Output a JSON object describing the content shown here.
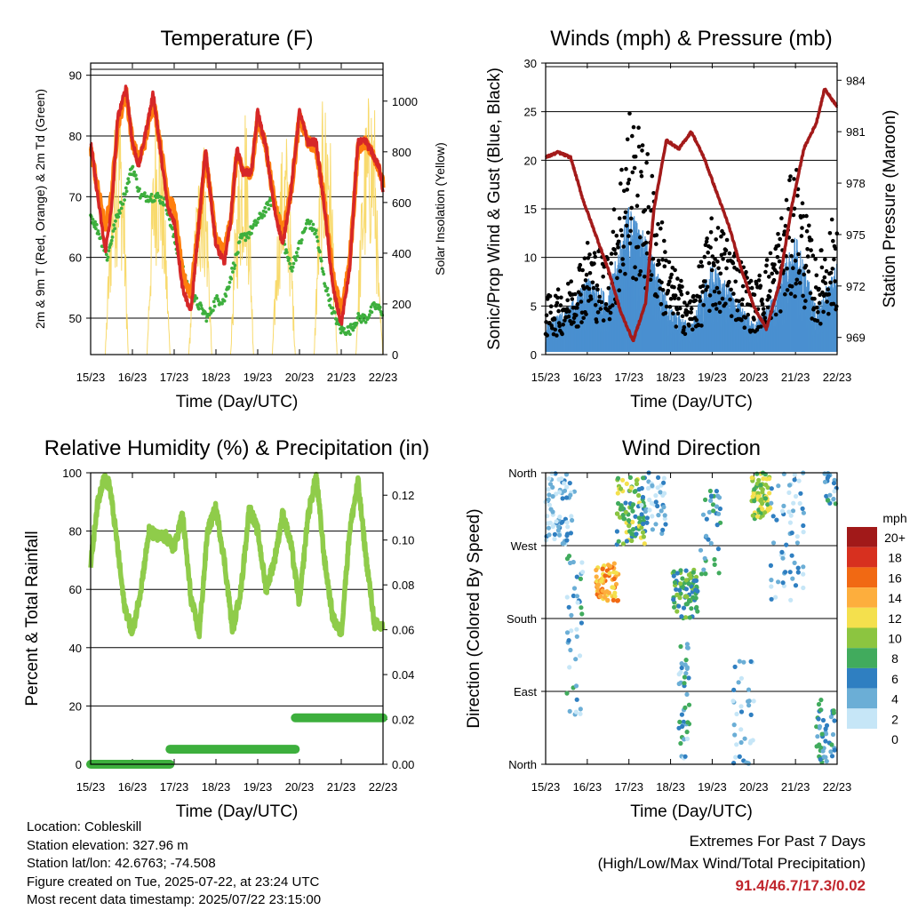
{
  "footer": {
    "location": "Location: Cobleskill",
    "elevation": "Station elevation: 327.96 m",
    "latlon": "Station lat/lon: 42.6763; -74.508",
    "created": "Figure created on Tue, 2025-07-22, at 23:24 UTC",
    "recent": "Most recent data timestamp: 2025/07/22 23:15:00",
    "extremes_title": "Extremes For Past 7 Days",
    "extremes_sub": "(High/Low/Max Wind/Total Precipitation)",
    "extremes_values": "91.4/46.7/17.3/0.02"
  },
  "chart_data": [
    {
      "type": "line",
      "title": "Temperature (F)",
      "xlabel": "Time (Day/UTC)",
      "ylabel": "2m & 9m T (Red, Orange) & 2m Td (Green)",
      "y2label": "Solar Insolation (Yellow)",
      "x_ticks": [
        "15/23",
        "16/23",
        "17/23",
        "18/23",
        "19/23",
        "20/23",
        "21/23",
        "22/23"
      ],
      "ylim": [
        44,
        92
      ],
      "y_ticks": [
        50,
        60,
        70,
        80,
        90
      ],
      "y2lim": [
        0,
        1150
      ],
      "y2_ticks": [
        0,
        200,
        400,
        600,
        800,
        1000
      ],
      "grid": true,
      "colors": {
        "t2m": "#d62728",
        "t9m": "#ff7f0e",
        "td": "#3daf3d",
        "solar": "#f7d354"
      },
      "series": [
        {
          "name": "2m T",
          "color": "#d62728",
          "x": [
            0,
            0.15,
            0.35,
            0.5,
            0.65,
            0.85,
            1.0,
            1.15,
            1.3,
            1.5,
            1.7,
            1.85,
            2.0,
            2.2,
            2.4,
            2.6,
            2.75,
            3.0,
            3.2,
            3.35,
            3.5,
            3.65,
            3.85,
            4.0,
            4.2,
            4.4,
            4.6,
            4.8,
            5.0,
            5.2,
            5.4,
            5.6,
            5.8,
            6.0,
            6.2,
            6.4,
            6.6,
            6.75,
            6.9,
            7.0
          ],
          "y": [
            79,
            71,
            61,
            68,
            83,
            88,
            79,
            75,
            80,
            87,
            76,
            68,
            66,
            55,
            51,
            66,
            78,
            62,
            59,
            66,
            78,
            74,
            74,
            84,
            78,
            68,
            62,
            71,
            84,
            79,
            79,
            68,
            55,
            49,
            58,
            79,
            79,
            77,
            75,
            71
          ]
        },
        {
          "name": "9m T",
          "color": "#ff7f0e",
          "x": [
            0,
            0.15,
            0.35,
            0.5,
            0.65,
            0.85,
            1.0,
            1.15,
            1.3,
            1.5,
            1.7,
            1.85,
            2.0,
            2.2,
            2.4,
            2.6,
            2.75,
            3.0,
            3.2,
            3.35,
            3.5,
            3.65,
            3.85,
            4.0,
            4.2,
            4.4,
            4.6,
            4.8,
            5.0,
            5.2,
            5.4,
            5.6,
            5.8,
            6.0,
            6.2,
            6.4,
            6.6,
            6.75,
            6.9,
            7.0
          ],
          "y": [
            78,
            72,
            65,
            70,
            82,
            87,
            79,
            76,
            79,
            86,
            77,
            70,
            68,
            57,
            54,
            66,
            77,
            63,
            61,
            66,
            77,
            74,
            74,
            83,
            78,
            69,
            64,
            71,
            83,
            79,
            78,
            69,
            57,
            51,
            59,
            78,
            79,
            77,
            75,
            72
          ]
        },
        {
          "name": "2m Td",
          "color": "#3daf3d",
          "x": [
            0,
            0.2,
            0.4,
            0.6,
            0.8,
            1.0,
            1.2,
            1.4,
            1.6,
            1.8,
            2.0,
            2.2,
            2.4,
            2.6,
            2.8,
            3.0,
            3.2,
            3.4,
            3.6,
            3.8,
            4.0,
            4.2,
            4.4,
            4.6,
            4.8,
            5.0,
            5.2,
            5.4,
            5.6,
            5.8,
            6.0,
            6.2,
            6.4,
            6.6,
            6.8,
            7.0
          ],
          "y": [
            67,
            64,
            60,
            66,
            70,
            75,
            70,
            70,
            70,
            69,
            63,
            58,
            54,
            52,
            50,
            53,
            53,
            58,
            63,
            64,
            66,
            68,
            70,
            63,
            58,
            62,
            66,
            64,
            56,
            51,
            48,
            48,
            50,
            50,
            52,
            51
          ]
        },
        {
          "name": "Solar Insolation",
          "color": "#f7d354",
          "axis": "y2",
          "x": [
            0,
            0.35,
            0.45,
            0.55,
            0.7,
            0.8,
            0.9,
            1.35,
            1.45,
            1.55,
            1.7,
            1.8,
            1.9,
            2.35,
            2.45,
            2.55,
            2.7,
            2.8,
            2.9,
            3.35,
            3.45,
            3.55,
            3.7,
            3.8,
            3.9,
            4.35,
            4.45,
            4.55,
            4.7,
            4.8,
            4.9,
            5.35,
            5.45,
            5.55,
            5.7,
            5.8,
            5.9,
            6.35,
            6.45,
            6.55,
            6.7,
            6.8,
            6.9,
            7.0
          ],
          "y": [
            0,
            0,
            500,
            900,
            1050,
            700,
            0,
            0,
            600,
            1000,
            900,
            500,
            0,
            0,
            400,
            700,
            900,
            600,
            0,
            0,
            500,
            800,
            1050,
            700,
            0,
            0,
            450,
            800,
            900,
            500,
            0,
            0,
            600,
            1000,
            1050,
            600,
            0,
            0,
            500,
            900,
            1100,
            1000,
            300,
            0
          ]
        }
      ]
    },
    {
      "type": "scatter",
      "title": "Winds (mph) & Pressure (mb)",
      "xlabel": "Time (Day/UTC)",
      "ylabel": "Sonic/Prop Wind & Gust (Blue, Black)",
      "y2label": "Station Pressure (Maroon)",
      "x_ticks": [
        "15/23",
        "16/23",
        "17/23",
        "18/23",
        "19/23",
        "20/23",
        "21/23",
        "22/23"
      ],
      "ylim": [
        0,
        30
      ],
      "y_ticks": [
        0,
        5,
        10,
        15,
        20,
        25,
        30
      ],
      "y2lim": [
        968,
        985
      ],
      "y2_ticks": [
        969,
        972,
        975,
        978,
        981,
        984
      ],
      "grid": true,
      "colors": {
        "wind": "#4a90d0",
        "gust": "#000000",
        "pressure": "#a31a1a"
      },
      "series": [
        {
          "name": "Wind",
          "color": "#4a90d0",
          "x": [
            0,
            0.5,
            1.0,
            1.5,
            2.0,
            2.5,
            3.0,
            3.5,
            4.0,
            4.5,
            5.0,
            5.5,
            6.0,
            6.5,
            7.0
          ],
          "y": [
            2,
            3,
            5,
            4,
            10,
            7,
            3,
            2,
            6,
            4,
            2,
            4,
            8,
            3,
            6
          ]
        },
        {
          "name": "Gust",
          "color": "#000000",
          "x": [
            0,
            0.5,
            1.0,
            1.5,
            2.0,
            2.5,
            3.0,
            3.5,
            4.0,
            4.5,
            5.0,
            5.5,
            6.0,
            6.5,
            7.0
          ],
          "y": [
            5,
            6,
            10,
            9,
            22,
            17,
            8,
            5,
            12,
            10,
            6,
            10,
            17,
            8,
            13
          ]
        },
        {
          "name": "Station Pressure",
          "color": "#a31a1a",
          "axis": "y2",
          "x": [
            0,
            0.3,
            0.6,
            0.9,
            1.2,
            1.5,
            1.8,
            2.1,
            2.4,
            2.6,
            2.9,
            3.2,
            3.5,
            3.8,
            4.1,
            4.4,
            4.7,
            5.0,
            5.3,
            5.6,
            5.9,
            6.2,
            6.5,
            6.7,
            6.9,
            7.0
          ],
          "y": [
            979.5,
            979.8,
            979.5,
            977.0,
            975.0,
            973.0,
            970.5,
            968.8,
            971.0,
            976.5,
            980.5,
            980.0,
            981.0,
            979.5,
            977.5,
            975.5,
            973.0,
            970.8,
            969.5,
            972.0,
            976.5,
            980.0,
            981.5,
            983.5,
            982.8,
            982.5
          ]
        }
      ]
    },
    {
      "type": "line",
      "title": "Relative Humidity (%) & Precipitation (in)",
      "xlabel": "Time (Day/UTC)",
      "ylabel": "Percent & Total Rainfall",
      "x_ticks": [
        "15/23",
        "16/23",
        "17/23",
        "18/23",
        "19/23",
        "20/23",
        "21/23",
        "22/23"
      ],
      "ylim": [
        0,
        100
      ],
      "y_ticks": [
        0,
        20,
        40,
        60,
        80,
        100
      ],
      "y2lim": [
        0,
        0.13
      ],
      "y2_ticks": [
        0.0,
        0.02,
        0.04,
        0.06,
        0.08,
        0.1,
        0.12
      ],
      "grid": true,
      "colors": {
        "rh": "#8fcc4a",
        "precip": "#3daf3d"
      },
      "series": [
        {
          "name": "RH",
          "color": "#8fcc4a",
          "x": [
            0,
            0.15,
            0.3,
            0.45,
            0.6,
            0.8,
            1.0,
            1.2,
            1.4,
            1.6,
            1.8,
            2.0,
            2.2,
            2.4,
            2.6,
            2.8,
            3.0,
            3.2,
            3.4,
            3.6,
            3.8,
            4.0,
            4.2,
            4.4,
            4.6,
            4.8,
            5.0,
            5.2,
            5.4,
            5.6,
            5.8,
            6.0,
            6.2,
            6.4,
            6.6,
            6.8,
            7.0
          ],
          "y": [
            68,
            88,
            98,
            96,
            80,
            55,
            45,
            60,
            80,
            78,
            78,
            74,
            86,
            57,
            45,
            80,
            88,
            70,
            46,
            60,
            88,
            80,
            60,
            70,
            86,
            75,
            55,
            85,
            99,
            70,
            50,
            45,
            80,
            97,
            70,
            48,
            47
          ]
        },
        {
          "name": "Precipitation",
          "color": "#3daf3d",
          "axis": "y2",
          "x": [
            0,
            1.9,
            1.9,
            4.9,
            4.9,
            7.0
          ],
          "y": [
            0.0,
            0.0,
            0.0067,
            0.0067,
            0.0207,
            0.0207
          ]
        }
      ]
    },
    {
      "type": "scatter",
      "title": "Wind Direction",
      "xlabel": "Time (Day/UTC)",
      "ylabel": "Direction (Colored By Speed)",
      "x_ticks": [
        "15/23",
        "16/23",
        "17/23",
        "18/23",
        "19/23",
        "20/23",
        "21/23",
        "22/23"
      ],
      "y_ticks": [
        "North",
        "East",
        "South",
        "West",
        "North"
      ],
      "ylim": [
        0,
        360
      ],
      "grid": true,
      "colorbar": {
        "unit": "mph",
        "labels": [
          "20+",
          "18",
          "16",
          "14",
          "12",
          "10",
          "8",
          "6",
          "4",
          "2",
          "0"
        ],
        "colors": [
          "#a11919",
          "#d7301f",
          "#f16913",
          "#fdae3d",
          "#f4e04d",
          "#8cc540",
          "#41ab5d",
          "#2f7fc1",
          "#6baed6",
          "#c6e6f7"
        ]
      }
    }
  ]
}
